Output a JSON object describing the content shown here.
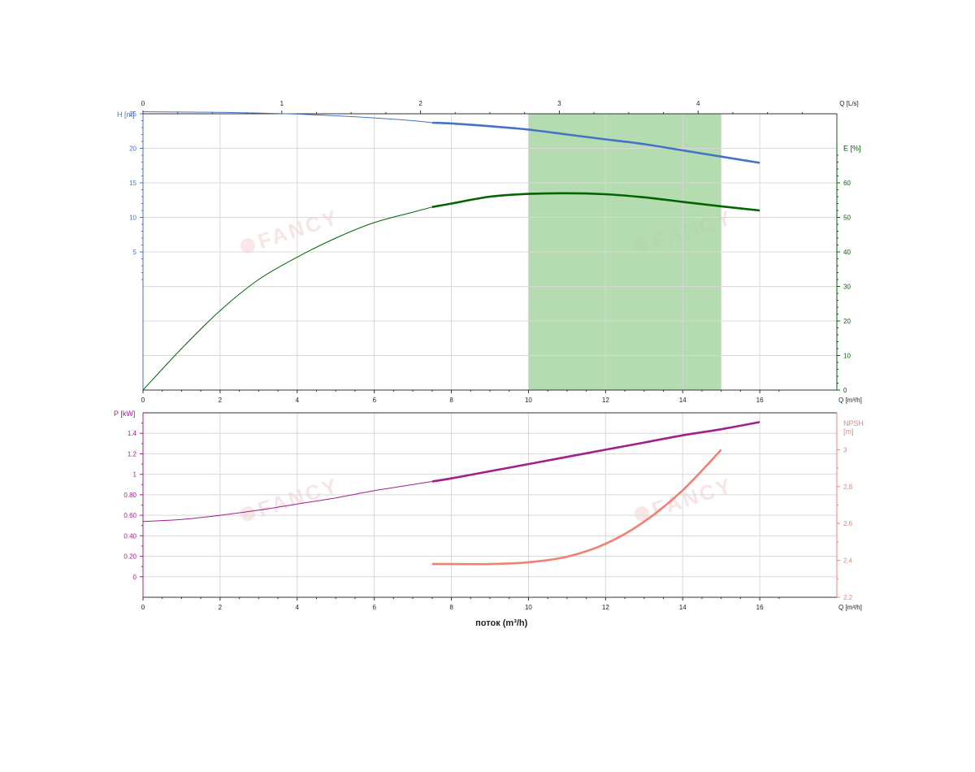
{
  "watermark": "FANCY",
  "colors": {
    "head": "#4472c4",
    "efficiency": "#006400",
    "power": "#a0208c",
    "npsh": "#f08070",
    "best_range": "#a8d5a2",
    "grid": "#d8d8d8",
    "axis": "#333333"
  },
  "chart_data": [
    {
      "type": "line",
      "panel": "upper",
      "xlabel": "Q [m³/h]",
      "xlim": [
        0,
        18
      ],
      "x_ticks": [
        "0",
        "2",
        "4",
        "6",
        "8",
        "10",
        "12",
        "14",
        "16"
      ],
      "x2label": "Q [L/s]",
      "x2lim": [
        0,
        5
      ],
      "x2_ticks": [
        "0",
        "1",
        "2",
        "3",
        "4"
      ],
      "ylabel": "H [m]",
      "ylim": [
        -15,
        25
      ],
      "y_ticks": [
        "5",
        "10",
        "15",
        "20",
        "25"
      ],
      "y2label": "E [%]",
      "y2lim": [
        0,
        80
      ],
      "y2_ticks": [
        "0",
        "10",
        "20",
        "30",
        "40",
        "50",
        "60"
      ],
      "highlight_x_range": [
        10,
        15
      ],
      "series": [
        {
          "key": "head",
          "axis": "left",
          "bold_from": 7.5,
          "x": [
            0,
            1,
            2,
            3,
            4,
            5,
            6,
            7,
            7.5,
            8,
            9,
            10,
            11,
            12,
            13,
            14,
            15,
            16
          ],
          "y": [
            25.3,
            25.25,
            25.2,
            25.1,
            24.95,
            24.7,
            24.4,
            24.0,
            23.7,
            23.6,
            23.2,
            22.7,
            22.0,
            21.3,
            20.6,
            19.7,
            18.8,
            17.9
          ]
        },
        {
          "key": "efficiency",
          "axis": "right",
          "bold_from": 7.5,
          "x": [
            0,
            1,
            2,
            3,
            4,
            5,
            6,
            7,
            7.5,
            8,
            9,
            10,
            11,
            12,
            13,
            14,
            15,
            16
          ],
          "y": [
            0,
            12,
            23,
            32,
            38.5,
            44,
            48.5,
            51.5,
            53,
            54,
            56,
            56.8,
            57,
            56.7,
            55.8,
            54.5,
            53.2,
            52
          ]
        }
      ]
    },
    {
      "type": "line",
      "panel": "lower",
      "xlabel": "Q [m³/h]",
      "xlim": [
        0,
        18
      ],
      "x_ticks": [
        "0",
        "2",
        "4",
        "6",
        "8",
        "10",
        "12",
        "14",
        "16"
      ],
      "title": "поток (m³/h)",
      "ylabel": "P [kW]",
      "ylim": [
        -0.2,
        1.6
      ],
      "y_ticks": [
        "0",
        "0.20",
        "0.40",
        "0.60",
        "0.80",
        "1",
        "1.2",
        "1.4"
      ],
      "y2label_lines": [
        "NPSH",
        "[m]"
      ],
      "y2lim": [
        2.2,
        3.2
      ],
      "y2_ticks": [
        "2.2",
        "2.4",
        "2.6",
        "2.8",
        "3"
      ],
      "series": [
        {
          "key": "power",
          "axis": "left",
          "bold_from": 7.5,
          "x": [
            0,
            1,
            2,
            3,
            4,
            5,
            6,
            7,
            7.5,
            8,
            9,
            10,
            11,
            12,
            13,
            14,
            15,
            16
          ],
          "y": [
            0.54,
            0.56,
            0.6,
            0.65,
            0.71,
            0.77,
            0.84,
            0.9,
            0.93,
            0.96,
            1.03,
            1.1,
            1.17,
            1.24,
            1.31,
            1.38,
            1.44,
            1.51
          ]
        },
        {
          "key": "npsh",
          "axis": "right",
          "bold_from": 7.5,
          "x": [
            7.5,
            8,
            9,
            10,
            11,
            12,
            13,
            14,
            15
          ],
          "y": [
            2.38,
            2.38,
            2.38,
            2.39,
            2.42,
            2.49,
            2.61,
            2.78,
            3.0
          ]
        }
      ]
    }
  ]
}
